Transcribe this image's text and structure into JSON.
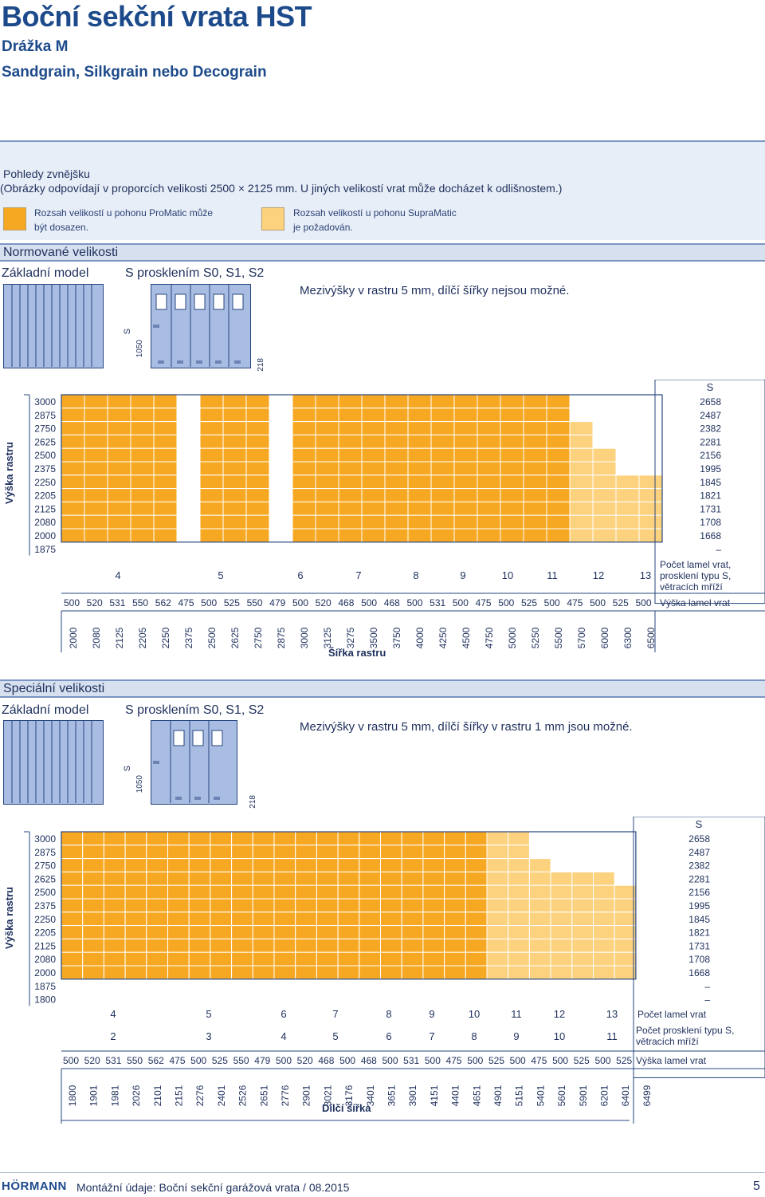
{
  "header": {
    "title": "Boční sekční vrata HST",
    "sub1": "Drážka M",
    "sub2": "Sandgrain, Silkgrain nebo Decograin"
  },
  "views": {
    "heading": "Pohledy zvnějšku",
    "note": "(Obrázky odpovídají v proporcích velikosti 2500 × 2125 mm. U jiných velikostí vrat může docházet k odlišnostem.)",
    "legend1_line1": "Rozsah velikostí u pohonu ProMatic může",
    "legend1_line2": "být dosazen.",
    "legend2_line1": "Rozsah velikostí u pohonu SupraMatic",
    "legend2_line2": "je požadován.",
    "legend1_color": "#f7a823",
    "legend2_color": "#fcd27f"
  },
  "colors": {
    "dark_orange": "#f7a823",
    "light_orange": "#fcd27f",
    "navy": "#27457e"
  },
  "normal": {
    "heading": "Normované velikosti",
    "model_basic": "Základní model",
    "model_s": "S prosklením S0, S1, S2",
    "note": "Mezivýšky v rastru 5 mm, dílčí šířky nejsou možné.",
    "dim_s": "S",
    "dim_1050": "1050",
    "dim_218": "218",
    "y_axis_label": "Výška rastru",
    "heights": [
      "3000",
      "2875",
      "2750",
      "2625",
      "2500",
      "2375",
      "2250",
      "2205",
      "2125",
      "2080",
      "2000",
      "1875"
    ],
    "s_header": "S",
    "s_values": [
      "2658",
      "2487",
      "2382",
      "2281",
      "2156",
      "1995",
      "1845",
      "1821",
      "1731",
      "1708",
      "1668",
      "–"
    ],
    "lamel_counts": [
      "4",
      "5",
      "6",
      "7",
      "8",
      "9",
      "10",
      "11",
      "12",
      "13"
    ],
    "lamel_count_label": "Počet lamel vrat, prosklení typu S, větracích mříží",
    "lamel_heights": [
      "500",
      "520",
      "531",
      "550",
      "562",
      "475",
      "500",
      "525",
      "550",
      "479",
      "500",
      "520",
      "468",
      "500",
      "468",
      "500",
      "531",
      "500",
      "475",
      "500",
      "525",
      "500",
      "475",
      "500",
      "525",
      "500"
    ],
    "lamel_height_label": "Výška lamel vrat",
    "widths": [
      "2000",
      "2080",
      "2125",
      "2205",
      "2250",
      "2375",
      "2500",
      "2625",
      "2750",
      "2875",
      "3000",
      "3125",
      "3275",
      "3500",
      "3750",
      "4000",
      "4250",
      "4500",
      "4750",
      "5000",
      "5250",
      "5500",
      "5700",
      "6000",
      "6300",
      "6500"
    ],
    "x_axis_label": "Šířka rastru"
  },
  "special": {
    "heading": "Speciální velikosti",
    "model_basic": "Základní model",
    "model_s": "S prosklením S0, S1, S2",
    "note": "Mezivýšky v rastru 5 mm, dílčí šířky v rastru 1 mm jsou možné.",
    "dim_s": "S",
    "dim_1050": "1050",
    "dim_218": "218",
    "y_axis_label": "Výška rastru",
    "heights": [
      "3000",
      "2875",
      "2750",
      "2625",
      "2500",
      "2375",
      "2250",
      "2205",
      "2125",
      "2080",
      "2000",
      "1875",
      "1800"
    ],
    "s_header": "S",
    "s_values": [
      "2658",
      "2487",
      "2382",
      "2281",
      "2156",
      "1995",
      "1845",
      "1821",
      "1731",
      "1708",
      "1668",
      "–",
      "–"
    ],
    "lamel_counts": [
      "4",
      "5",
      "6",
      "7",
      "8",
      "9",
      "10",
      "11",
      "12",
      "13"
    ],
    "lamel_count_label": "Počet lamel vrat",
    "glazing_counts": [
      "2",
      "3",
      "4",
      "5",
      "6",
      "7",
      "8",
      "9",
      "10",
      "11"
    ],
    "glazing_label": "Počet prosklení typu S, větracích mříží",
    "lamel_heights": [
      "500",
      "520",
      "531",
      "550",
      "562",
      "475",
      "500",
      "525",
      "550",
      "479",
      "500",
      "520",
      "468",
      "500",
      "468",
      "500",
      "531",
      "500",
      "475",
      "500",
      "525",
      "500",
      "475",
      "500",
      "525",
      "500",
      "525"
    ],
    "lamel_height_label": "Výška lamel vrat",
    "widths": [
      "1800",
      "1901",
      "1981",
      "2026",
      "2101",
      "2151",
      "2276",
      "2401",
      "2526",
      "2651",
      "2776",
      "2901",
      "3021",
      "3176",
      "3401",
      "3651",
      "3901",
      "4151",
      "4401",
      "4651",
      "4901",
      "5151",
      "5401",
      "5601",
      "5901",
      "6201",
      "6401",
      "6499"
    ],
    "x_axis_label": "Dílčí šířka"
  },
  "footer": {
    "brand": "HÖRMANN",
    "text": "Montážní údaje: Boční sekční garážová vrata / 08.2015",
    "page": "5"
  }
}
